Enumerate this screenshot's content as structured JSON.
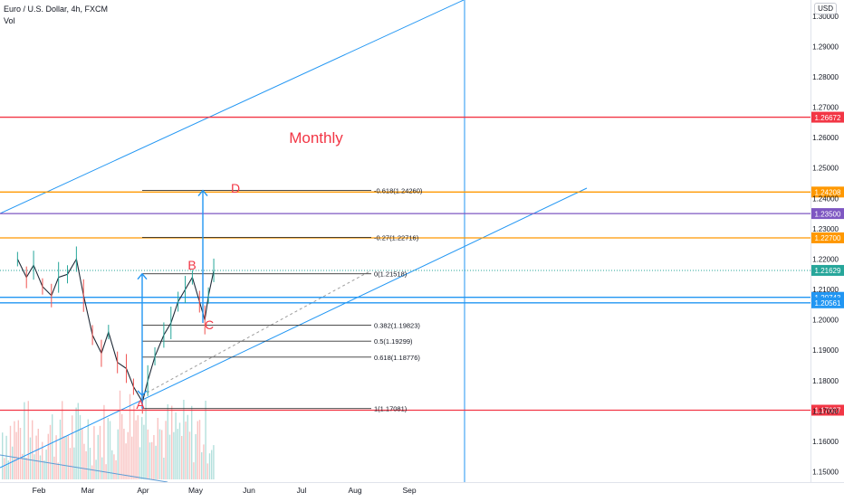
{
  "legend": {
    "symbol": "Euro / U.S. Dollar, 4h, FXCM",
    "volume": "Vol"
  },
  "currency": "USD",
  "annotations": {
    "period_label": "Monthly",
    "points": {
      "A": "A",
      "B": "B",
      "C": "C",
      "D": "D"
    }
  },
  "colors": {
    "red_line": "#f23645",
    "orange_line": "#ff9800",
    "purple_line": "#7e57c2",
    "blue_line": "#2196f3",
    "green_line": "#26a69a",
    "text_red": "#f23645",
    "up_candle": "#26a69a",
    "down_candle": "#ef5350"
  },
  "chart_data": {
    "type": "line",
    "title": "Euro / U.S. Dollar, 4h, FXCM",
    "x_ticks": [
      "Feb",
      "Mar",
      "Apr",
      "May",
      "Jun",
      "Jul",
      "Aug",
      "Sep"
    ],
    "y_ticks": [
      "1.30000",
      "1.29000",
      "1.28000",
      "1.27000",
      "1.26000",
      "1.25000",
      "1.24000",
      "1.23000",
      "1.22000",
      "1.21000",
      "1.20000",
      "1.19000",
      "1.18000",
      "1.17000",
      "1.16000",
      "1.15000"
    ],
    "ylim": [
      1.1466,
      1.3053
    ],
    "horizontal_levels": [
      {
        "price": 1.26672,
        "label": "1.26672",
        "color": "#f23645"
      },
      {
        "price": 1.24208,
        "label": "1.24208",
        "color": "#ff9800"
      },
      {
        "price": 1.235,
        "label": "1.23500",
        "color": "#7e57c2"
      },
      {
        "price": 1.227,
        "label": "1.22700",
        "color": "#ff9800"
      },
      {
        "price": 1.21629,
        "label": "1.21629",
        "color": "#26a69a"
      },
      {
        "price": 1.20743,
        "label": "1.20743",
        "color": "#2196f3"
      },
      {
        "price": 1.20561,
        "label": "1.20561",
        "color": "#2196f3"
      },
      {
        "price": 1.17027,
        "label": "1.17027",
        "color": "#f23645"
      }
    ],
    "fib_levels": [
      {
        "price": 1.2426,
        "label": "-0.618(1.24260)"
      },
      {
        "price": 1.22716,
        "label": "-0.27(1.22716)"
      },
      {
        "price": 1.21518,
        "label": "0(1.21518)"
      },
      {
        "price": 1.19823,
        "label": "0.382(1.19823)"
      },
      {
        "price": 1.19299,
        "label": "0.5(1.19299)"
      },
      {
        "price": 1.18776,
        "label": "0.618(1.18776)"
      },
      {
        "price": 1.17081,
        "label": "1(1.17081)"
      }
    ],
    "price_series": {
      "name": "EURUSD",
      "x": [
        "Jan 20",
        "Jan 25",
        "Jan 29",
        "Feb 03",
        "Feb 08",
        "Feb 12",
        "Feb 17",
        "Feb 22",
        "Feb 26",
        "Mar 03",
        "Mar 08",
        "Mar 12",
        "Mar 17",
        "Mar 22",
        "Mar 26",
        "Mar 31",
        "Apr 03",
        "Apr 07",
        "Apr 12",
        "Apr 16",
        "Apr 20",
        "Apr 24",
        "Apr 28",
        "May 02",
        "May 05",
        "May 07",
        "May 10"
      ],
      "values": [
        1.22,
        1.214,
        1.218,
        1.211,
        1.208,
        1.214,
        1.215,
        1.22,
        1.208,
        1.195,
        1.189,
        1.196,
        1.186,
        1.184,
        1.178,
        1.173,
        1.18,
        1.188,
        1.195,
        1.199,
        1.206,
        1.21,
        1.214,
        1.206,
        1.2,
        1.208,
        1.2163
      ]
    }
  }
}
